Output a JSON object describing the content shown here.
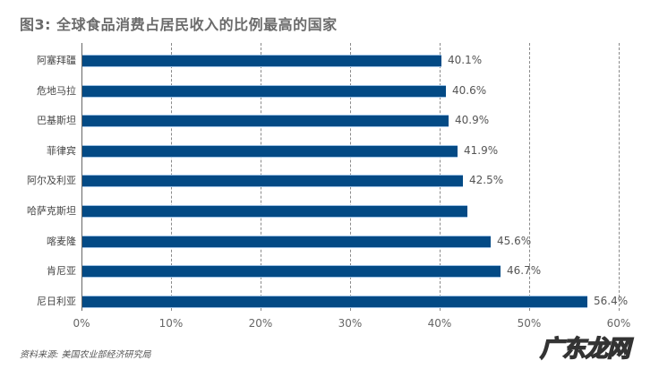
{
  "title": "图3: 全球食品消费占居民收入的比例最高的国家",
  "source": "资料来源: 美国农业部经济研究局",
  "watermark": "广东龙网",
  "colors": {
    "bar": "#034a85",
    "bar_edge": "#9fc3e6",
    "grid": "#8a8a8a",
    "text": "#555555"
  },
  "chart_data": {
    "type": "bar",
    "orientation": "horizontal",
    "title": "图3: 全球食品消费占居民收入的比例最高的国家",
    "xlabel": "",
    "ylabel": "",
    "xlim": [
      0,
      60
    ],
    "x_ticks": [
      "0%",
      "10%",
      "20%",
      "30%",
      "40%",
      "50%",
      "60%"
    ],
    "grid": "vertical dashed",
    "legend": "none",
    "categories": [
      "阿塞拜疆",
      "危地马拉",
      "巴基斯坦",
      "菲律宾",
      "阿尔及利亚",
      "哈萨克斯坦",
      "喀麦隆",
      "肯尼亚",
      "尼日利亚"
    ],
    "values": [
      40.1,
      40.6,
      40.9,
      41.9,
      42.5,
      43.0,
      45.6,
      46.7,
      56.4
    ],
    "labels": [
      "40.1%",
      "40.6%",
      "40.9%",
      "41.9%",
      "42.5%",
      "",
      "45.6%",
      "46.7%",
      "56.4%"
    ],
    "annotations": [
      "资料来源: 美国农业部经济研究局"
    ]
  }
}
